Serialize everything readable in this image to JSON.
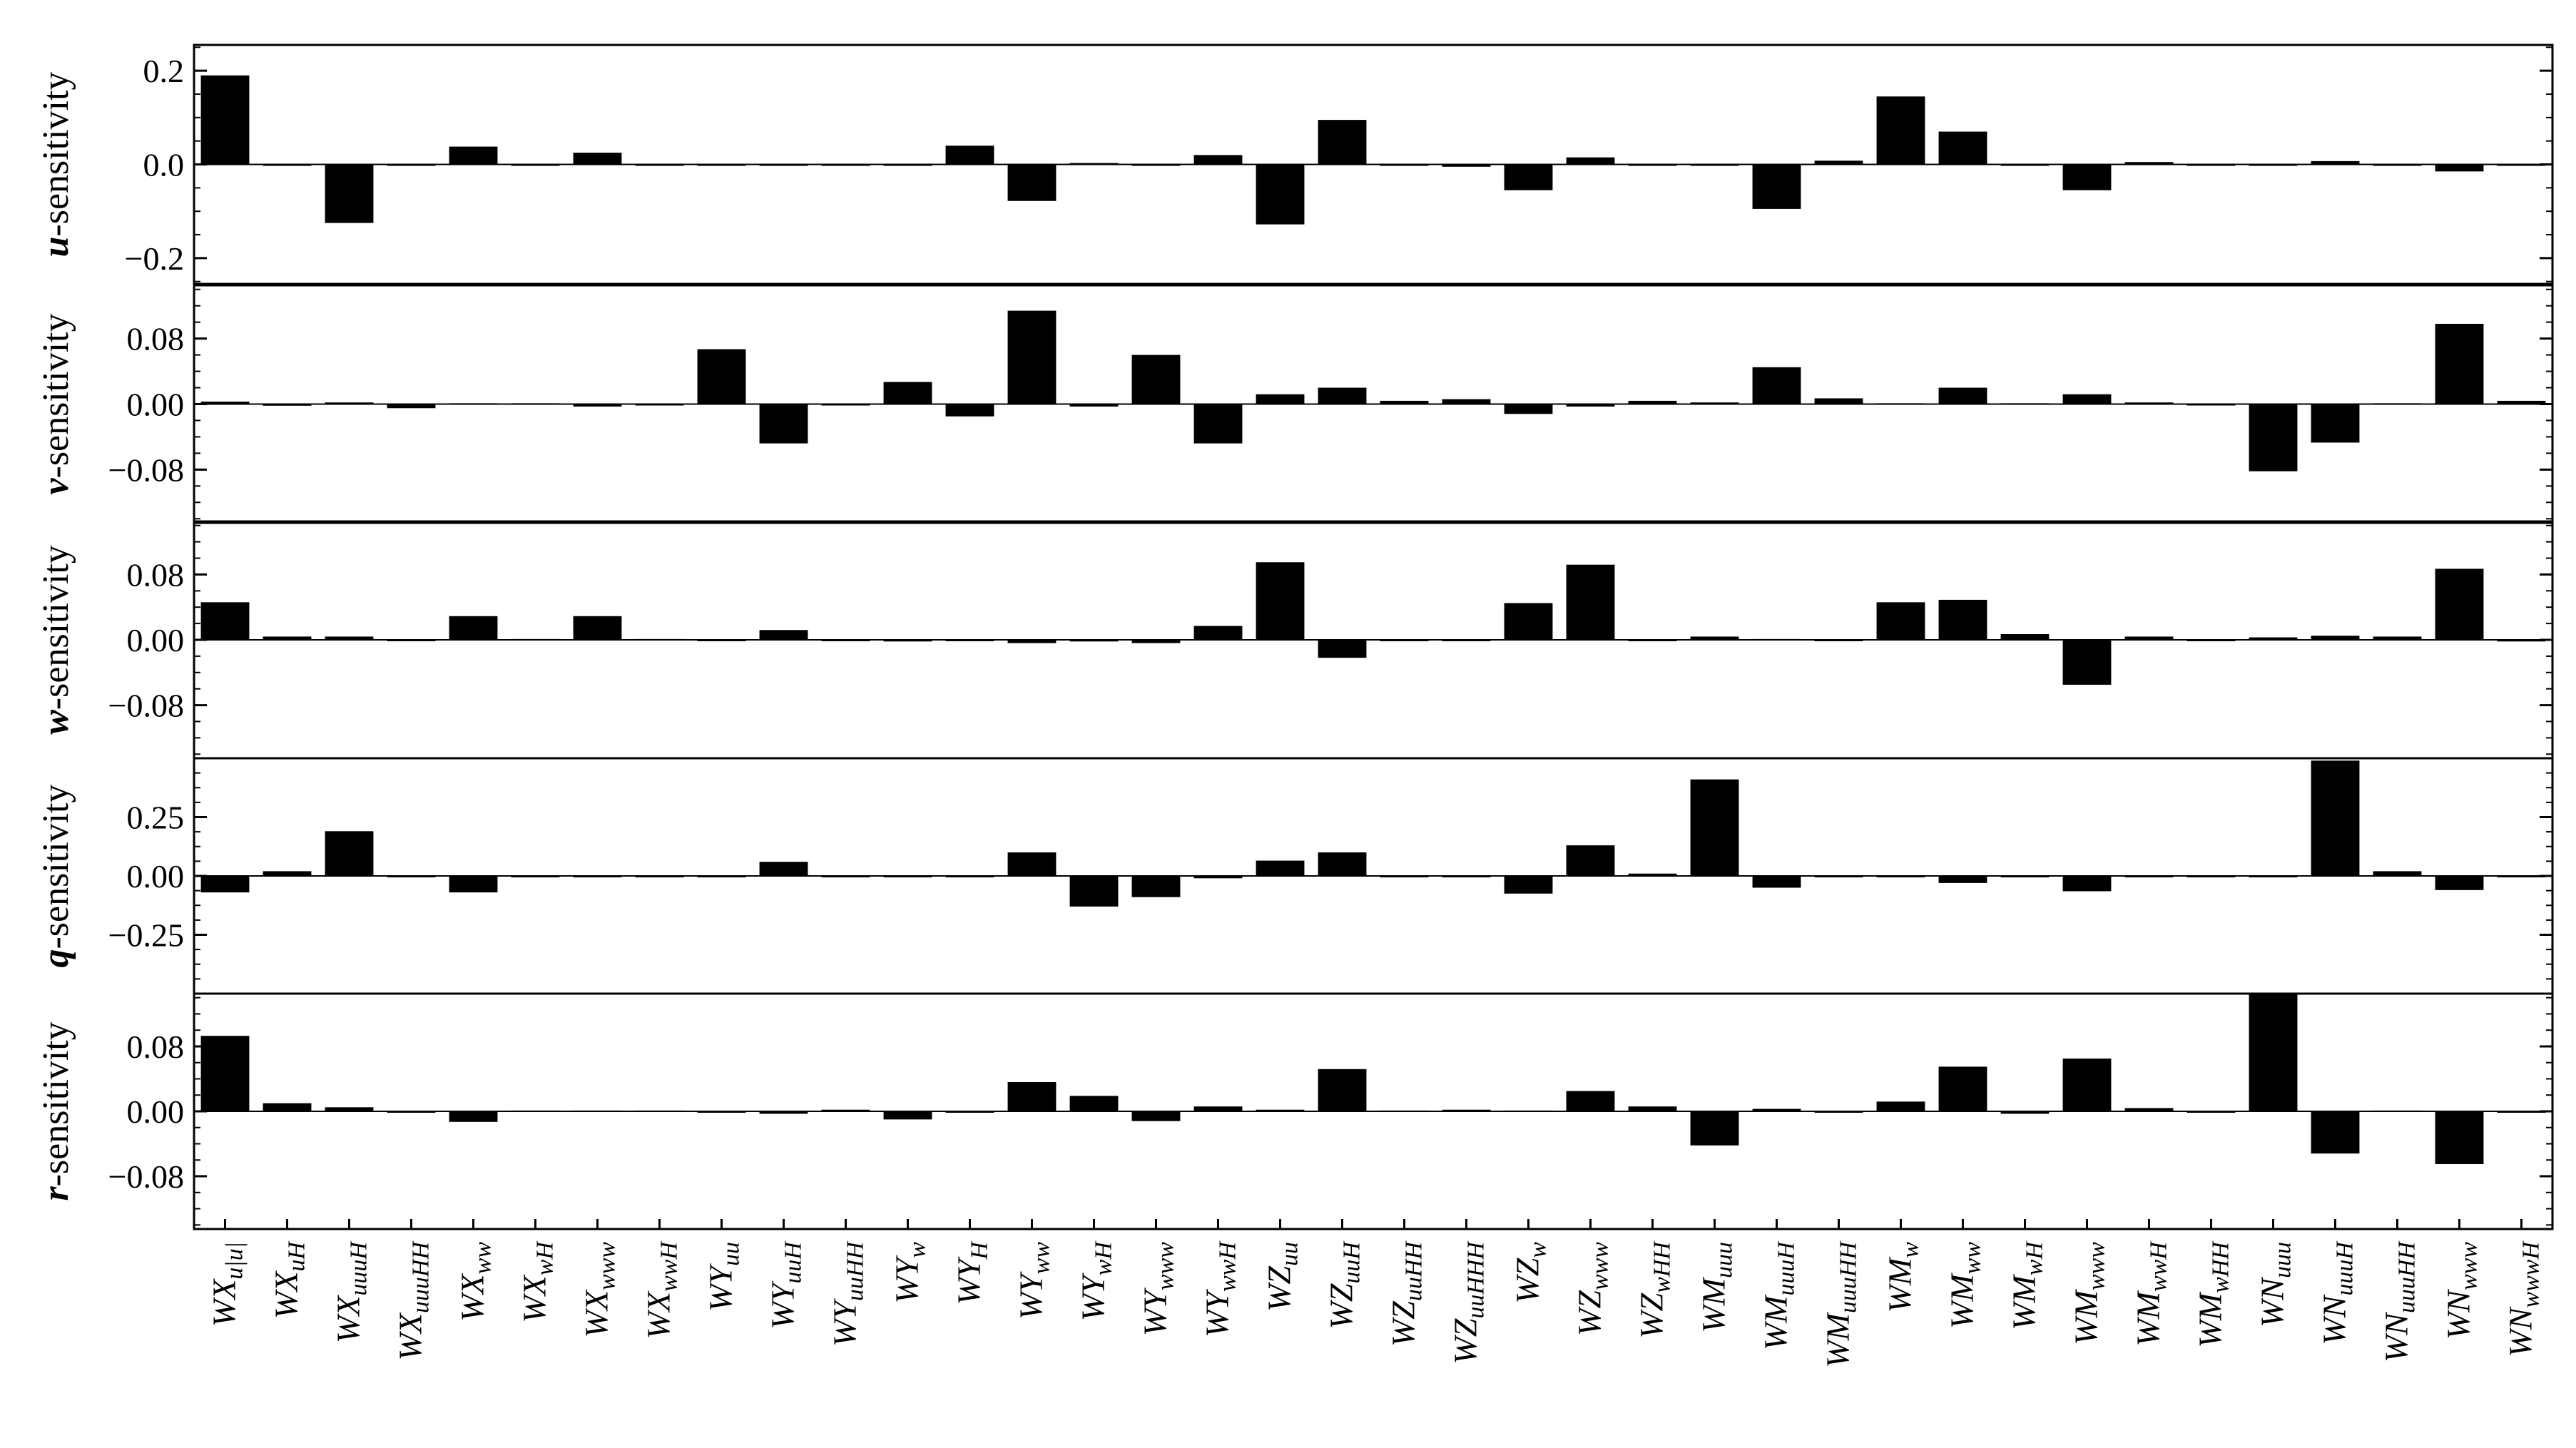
{
  "chart_data": {
    "type": "bar",
    "layout_description": "five stacked bar-chart panels sharing one x axis",
    "categories": [
      {
        "base": "WX",
        "sub": "u|u|",
        "italic_sub": true
      },
      {
        "base": "WX",
        "sub": "uH"
      },
      {
        "base": "WX",
        "sub": "uuuH"
      },
      {
        "base": "WX",
        "sub": "uuuHH"
      },
      {
        "base": "WX",
        "sub": "ww"
      },
      {
        "base": "WX",
        "sub": "wH"
      },
      {
        "base": "WX",
        "sub": "www"
      },
      {
        "base": "WX",
        "sub": "wwH"
      },
      {
        "base": "WY",
        "sub": "uu"
      },
      {
        "base": "WY",
        "sub": "uuH"
      },
      {
        "base": "WY",
        "sub": "uuHH"
      },
      {
        "base": "WY",
        "sub": "w"
      },
      {
        "base": "WY",
        "sub": "H"
      },
      {
        "base": "WY",
        "sub": "ww"
      },
      {
        "base": "WY",
        "sub": "wH"
      },
      {
        "base": "WY",
        "sub": "www"
      },
      {
        "base": "WY",
        "sub": "wwH"
      },
      {
        "base": "WZ",
        "sub": "uu"
      },
      {
        "base": "WZ",
        "sub": "uuH"
      },
      {
        "base": "WZ",
        "sub": "uuHH"
      },
      {
        "base": "WZ",
        "sub": "uuHHH"
      },
      {
        "base": "WZ",
        "sub": "w"
      },
      {
        "base": "WZ",
        "sub": "www"
      },
      {
        "base": "WZ",
        "sub": "wHH"
      },
      {
        "base": "WM",
        "sub": "uuu"
      },
      {
        "base": "WM",
        "sub": "uuuH"
      },
      {
        "base": "WM",
        "sub": "uuuHH"
      },
      {
        "base": "WM",
        "sub": "w"
      },
      {
        "base": "WM",
        "sub": "ww"
      },
      {
        "base": "WM",
        "sub": "wH"
      },
      {
        "base": "WM",
        "sub": "www"
      },
      {
        "base": "WM",
        "sub": "wwH"
      },
      {
        "base": "WM",
        "sub": "wHH"
      },
      {
        "base": "WN",
        "sub": "uuu"
      },
      {
        "base": "WN",
        "sub": "uuuH"
      },
      {
        "base": "WN",
        "sub": "uuuHH"
      },
      {
        "base": "WN",
        "sub": "www"
      },
      {
        "base": "WN",
        "sub": "wwwH"
      }
    ],
    "panels": [
      {
        "ylabel_symbol": "u",
        "ylabel_suffix": "-sensitivity",
        "ylim": [
          -0.255,
          0.255
        ],
        "ticks": [
          0.2,
          0.0,
          -0.2
        ],
        "tick_labels": [
          "0.2",
          "0.0",
          "−0.2"
        ],
        "values": [
          0.19,
          0.0,
          -0.125,
          0.0,
          0.038,
          0.0,
          0.025,
          0.0,
          0.0,
          0.0,
          0.0,
          0.0,
          0.04,
          -0.078,
          0.003,
          0.0,
          0.02,
          -0.128,
          0.095,
          0.0,
          -0.005,
          -0.055,
          0.015,
          0.0,
          0.0,
          -0.095,
          0.008,
          0.145,
          0.07,
          0.0,
          -0.055,
          0.005,
          0.0,
          0.0,
          0.007,
          0.0,
          -0.015,
          0.0
        ]
      },
      {
        "ylabel_symbol": "v",
        "ylabel_suffix": "-sensitivity",
        "ylim": [
          -0.145,
          0.145
        ],
        "ticks": [
          0.08,
          0.0,
          -0.08
        ],
        "tick_labels": [
          "0.08",
          "0.00",
          "−0.08"
        ],
        "values": [
          0.003,
          -0.002,
          0.002,
          -0.005,
          0.001,
          0.001,
          -0.003,
          0.0,
          0.067,
          -0.048,
          0.0,
          0.027,
          -0.015,
          0.114,
          -0.003,
          0.06,
          -0.048,
          0.012,
          0.02,
          0.004,
          0.006,
          -0.012,
          -0.003,
          0.004,
          0.002,
          0.045,
          0.007,
          0.001,
          0.02,
          0.001,
          0.012,
          0.002,
          0.0,
          -0.082,
          -0.047,
          0.001,
          0.098,
          0.004
        ]
      },
      {
        "ylabel_symbol": "w",
        "ylabel_suffix": "-sensitivity",
        "ylim": [
          -0.145,
          0.145
        ],
        "ticks": [
          0.08,
          0.0,
          -0.08
        ],
        "tick_labels": [
          "0.08",
          "0.00",
          "−0.08"
        ],
        "values": [
          0.046,
          0.004,
          0.004,
          0.0,
          0.029,
          0.001,
          0.029,
          0.001,
          0.0,
          0.012,
          0.0,
          -0.002,
          0.0,
          -0.004,
          -0.002,
          -0.004,
          0.017,
          0.095,
          -0.022,
          0.0,
          0.0,
          0.045,
          0.092,
          0.0,
          0.004,
          0.001,
          0.0,
          0.046,
          0.049,
          0.007,
          -0.055,
          0.004,
          0.0,
          0.003,
          0.005,
          0.004,
          0.087,
          -0.002
        ]
      },
      {
        "ylabel_symbol": "q",
        "ylabel_suffix": "-sensitivity",
        "ylim": [
          -0.5,
          0.5
        ],
        "ticks": [
          0.25,
          0.0,
          -0.25
        ],
        "tick_labels": [
          "0.25",
          "0.00",
          "−0.25"
        ],
        "values": [
          -0.07,
          0.02,
          0.19,
          0.0,
          -0.07,
          0.0,
          0.0,
          0.0,
          0.0,
          0.06,
          0.0,
          0.0,
          0.0,
          0.1,
          -0.13,
          -0.09,
          -0.01,
          0.065,
          0.1,
          0.0,
          0.0,
          -0.075,
          0.13,
          0.01,
          0.41,
          -0.05,
          0.0,
          -0.005,
          -0.03,
          0.0,
          -0.065,
          0.0,
          0.0,
          0.0,
          0.49,
          0.02,
          -0.06,
          0.0
        ]
      },
      {
        "ylabel_symbol": "r",
        "ylabel_suffix": "-sensitivity",
        "ylim": [
          -0.145,
          0.145
        ],
        "ticks": [
          0.08,
          0.0,
          -0.08
        ],
        "tick_labels": [
          "0.08",
          "0.00",
          "−0.08"
        ],
        "values": [
          0.093,
          0.01,
          0.005,
          -0.001,
          -0.013,
          0.001,
          0.001,
          0.001,
          -0.001,
          -0.003,
          0.002,
          -0.01,
          0.0,
          0.036,
          0.019,
          -0.012,
          0.006,
          0.002,
          0.052,
          0.001,
          0.002,
          0.001,
          0.025,
          0.006,
          -0.042,
          0.003,
          0.0,
          0.012,
          0.055,
          -0.003,
          0.065,
          0.004,
          0.0,
          0.145,
          -0.052,
          0.001,
          -0.065,
          0.0
        ]
      }
    ],
    "colors": {
      "bar": "#000000",
      "axis": "#000000",
      "background": "#ffffff"
    },
    "grid": false,
    "legend": "none"
  }
}
